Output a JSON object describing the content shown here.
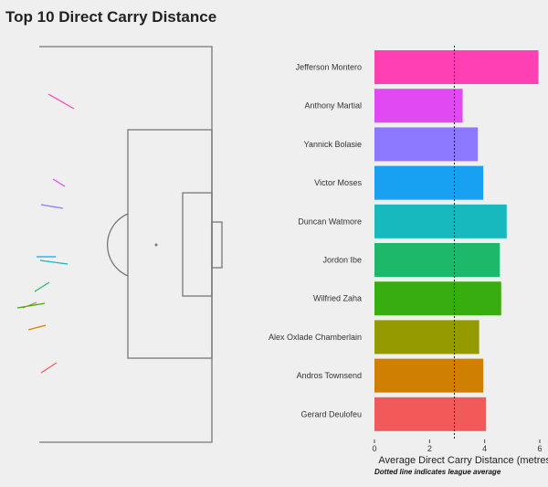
{
  "page": {
    "title": "Top 10 Direct Carry Distance"
  },
  "chart_data": [
    {
      "type": "line",
      "description_kind": "pitch",
      "pitch_orientation": "vertical-half",
      "colors": [
        "#F8766D",
        "#D39200",
        "#93AA00",
        "#00BA38",
        "#00C19F",
        "#00B9E3",
        "#619CFF",
        "#DB72FB",
        "#FF61C3",
        "#00BF7D"
      ],
      "segments": [
        {
          "player": "Jefferson Montero",
          "color": "#FF40B4"
        },
        {
          "player": "Wilfried Zaha",
          "color": "#3AAE00"
        },
        {
          "player": "Gerard Deulofeu",
          "color": "#F25A5A"
        }
      ]
    },
    {
      "type": "bar",
      "orientation": "horizontal",
      "categories": [
        "Jefferson Montero",
        "Anthony Martial",
        "Yannick Bolasie",
        "Victor Moses",
        "Duncan Watmore",
        "Jordon Ibe",
        "Wilfried Zaha",
        "Alex Oxlade Chamberlain",
        "Andros Townsend",
        "Gerard Deulofeu"
      ],
      "values": [
        5.95,
        3.2,
        3.75,
        3.95,
        4.8,
        4.55,
        4.6,
        3.8,
        3.95,
        4.05
      ],
      "colors": [
        "#FF40B4",
        "#E04AF0",
        "#8C78FF",
        "#18A0F2",
        "#17B8BE",
        "#1DB86A",
        "#37AD10",
        "#949A00",
        "#D08000",
        "#F25A5A"
      ],
      "xlabel": "Average Direct Carry Distance (metres)",
      "xlim": [
        0,
        6
      ],
      "xticks": [
        "0",
        "2",
        "4",
        "6"
      ],
      "reference_line": 2.9,
      "note": "Dotted line indicates league average"
    }
  ]
}
